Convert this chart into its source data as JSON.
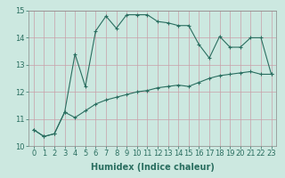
{
  "xlabel": "Humidex (Indice chaleur)",
  "background_color": "#cce8e0",
  "grid_color": "#c8a0a8",
  "line_color": "#2a6e60",
  "xlim": [
    -0.5,
    23.5
  ],
  "ylim": [
    10,
    15
  ],
  "yticks": [
    10,
    11,
    12,
    13,
    14,
    15
  ],
  "xticks": [
    0,
    1,
    2,
    3,
    4,
    5,
    6,
    7,
    8,
    9,
    10,
    11,
    12,
    13,
    14,
    15,
    16,
    17,
    18,
    19,
    20,
    21,
    22,
    23
  ],
  "line1_x": [
    0,
    1,
    2,
    3,
    4,
    5,
    6,
    7,
    8,
    9,
    10,
    11,
    12,
    13,
    14,
    15,
    16,
    17,
    18,
    19,
    20,
    21,
    22,
    23
  ],
  "line1_y": [
    10.6,
    10.35,
    10.45,
    11.25,
    13.4,
    12.2,
    14.25,
    14.8,
    14.35,
    14.85,
    14.85,
    14.85,
    14.6,
    14.55,
    14.45,
    14.45,
    13.75,
    13.25,
    14.05,
    13.65,
    13.65,
    14.0,
    14.0,
    12.65
  ],
  "line2_x": [
    0,
    1,
    2,
    3,
    4,
    5,
    6,
    7,
    8,
    9,
    10,
    11,
    12,
    13,
    14,
    15,
    16,
    17,
    18,
    19,
    20,
    21,
    22,
    23
  ],
  "line2_y": [
    10.6,
    10.35,
    10.45,
    11.25,
    11.05,
    11.3,
    11.55,
    11.7,
    11.8,
    11.9,
    12.0,
    12.05,
    12.15,
    12.2,
    12.25,
    12.2,
    12.35,
    12.5,
    12.6,
    12.65,
    12.7,
    12.75,
    12.65,
    12.65
  ],
  "tick_fontsize": 6,
  "xlabel_fontsize": 7,
  "linewidth": 0.8,
  "markersize": 3
}
